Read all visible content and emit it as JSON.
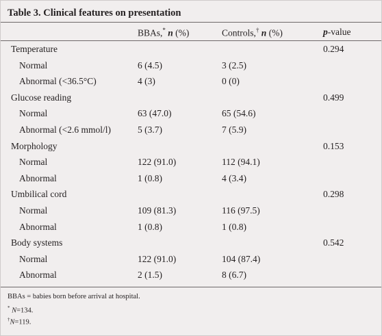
{
  "table": {
    "title": "Table 3. Clinical features on presentation",
    "headers": {
      "bbas_label": "BBAs,",
      "bbas_mark": "*",
      "controls_label": "Controls,",
      "controls_mark": "†",
      "n_label": "n",
      "pct_label": "(%)",
      "p_label": "p",
      "p_suffix": "-value"
    },
    "rows": [
      {
        "label": "Temperature",
        "indent": false,
        "bbas": "",
        "controls": "",
        "p": "0.294"
      },
      {
        "label": "Normal",
        "indent": true,
        "bbas": "6 (4.5)",
        "controls": "3 (2.5)",
        "p": ""
      },
      {
        "label": "Abnormal (<36.5°C)",
        "indent": true,
        "bbas": "4 (3)",
        "controls": "0 (0)",
        "p": ""
      },
      {
        "label": "Glucose reading",
        "indent": false,
        "bbas": "",
        "controls": "",
        "p": "0.499"
      },
      {
        "label": "Normal",
        "indent": true,
        "bbas": "63 (47.0)",
        "controls": "65 (54.6)",
        "p": ""
      },
      {
        "label": "Abnormal (<2.6 mmol/l)",
        "indent": true,
        "bbas": "5 (3.7)",
        "controls": "7 (5.9)",
        "p": ""
      },
      {
        "label": "Morphology",
        "indent": false,
        "bbas": "",
        "controls": "",
        "p": "0.153"
      },
      {
        "label": "Normal",
        "indent": true,
        "bbas": "122 (91.0)",
        "controls": "112 (94.1)",
        "p": ""
      },
      {
        "label": "Abnormal",
        "indent": true,
        "bbas": "1 (0.8)",
        "controls": "4 (3.4)",
        "p": ""
      },
      {
        "label": "Umbilical cord",
        "indent": false,
        "bbas": "",
        "controls": "",
        "p": "0.298"
      },
      {
        "label": "Normal",
        "indent": true,
        "bbas": "109 (81.3)",
        "controls": "116 (97.5)",
        "p": ""
      },
      {
        "label": "Abnormal",
        "indent": true,
        "bbas": "1 (0.8)",
        "controls": "1 (0.8)",
        "p": ""
      },
      {
        "label": "Body systems",
        "indent": false,
        "bbas": "",
        "controls": "",
        "p": "0.542"
      },
      {
        "label": "Normal",
        "indent": true,
        "bbas": "122 (91.0)",
        "controls": "104 (87.4)",
        "p": ""
      },
      {
        "label": "Abnormal",
        "indent": true,
        "bbas": "2 (1.5)",
        "controls": "8 (6.7)",
        "p": ""
      }
    ],
    "footnotes": {
      "abbrev": "BBAs = babies born before arrival at hospital.",
      "note1_mark": "*",
      "note1_n": "N",
      "note1_value": "=134.",
      "note2_mark": "†",
      "note2_n": "N",
      "note2_value": "=119."
    }
  },
  "colors": {
    "background": "#f1eeee",
    "text": "#231f20",
    "rule": "#6d6869"
  }
}
